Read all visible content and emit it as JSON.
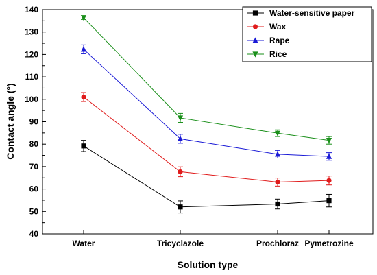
{
  "chart_data": {
    "type": "line",
    "xlabel": "Solution type",
    "ylabel": "Contact angle (°)",
    "ylim": [
      40,
      140
    ],
    "yticks": [
      40,
      50,
      60,
      70,
      80,
      90,
      100,
      110,
      120,
      130,
      140
    ],
    "categories": [
      "Water",
      "Tricyclazole",
      "Prochloraz",
      "Pymetrozine"
    ],
    "legend_position": "top-right",
    "grid": false,
    "series": [
      {
        "name": "Water-sensitive paper",
        "color": "#000000",
        "marker": "square",
        "values": [
          79.2,
          52.0,
          53.3,
          54.8
        ],
        "errors": [
          2.5,
          2.7,
          2.2,
          2.8
        ]
      },
      {
        "name": "Wax",
        "color": "#e01b1b",
        "marker": "circle",
        "values": [
          101.0,
          67.7,
          63.1,
          63.8
        ],
        "errors": [
          2.0,
          2.2,
          1.8,
          2.0
        ]
      },
      {
        "name": "Rape",
        "color": "#1a1ad6",
        "marker": "triangle-up",
        "values": [
          122.3,
          82.4,
          75.5,
          74.5
        ],
        "errors": [
          2.0,
          2.0,
          1.7,
          1.7
        ]
      },
      {
        "name": "Rice",
        "color": "#1a8f1a",
        "marker": "triangle-down",
        "values": [
          136.4,
          91.7,
          84.9,
          81.7
        ],
        "errors": [
          0.8,
          2.0,
          1.5,
          1.7
        ]
      }
    ]
  }
}
